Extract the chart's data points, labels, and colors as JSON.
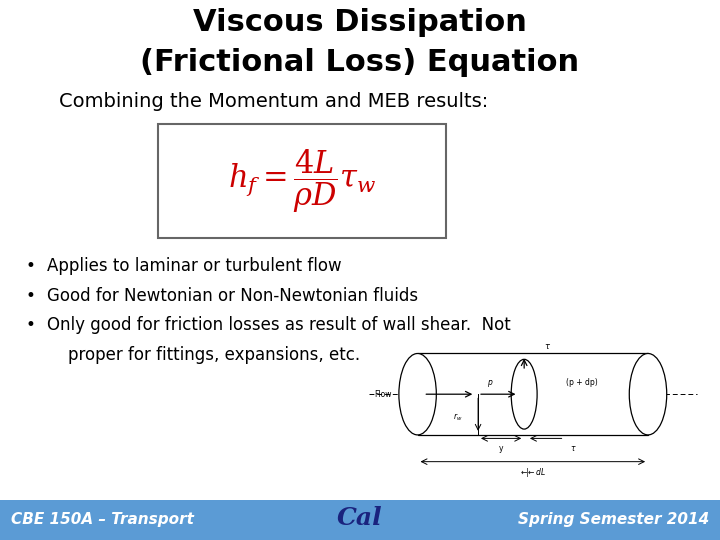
{
  "title_line1": "Viscous Dissipation",
  "title_line2": "(Frictional Loss) Equation",
  "subtitle": "Combining the Momentum and MEB results:",
  "footer_left": "CBE 150A – Transport",
  "footer_right": "Spring Semester 2014",
  "footer_bg_left": "#5b9bd5",
  "footer_bg_right": "#4472c4",
  "title_color": "#000000",
  "subtitle_color": "#000000",
  "equation_color": "#cc0000",
  "bullet_color": "#000000",
  "footer_text_color": "#ffffff",
  "bg_color": "#ffffff",
  "box_border_color": "#666666",
  "title_fontsize": 22,
  "subtitle_fontsize": 14,
  "equation_fontsize": 22,
  "bullet_fontsize": 12,
  "footer_fontsize": 11,
  "bullet1": "Applies to laminar or turbulent flow",
  "bullet2": "Good for Newtonian or Non-Newtonian fluids",
  "bullet3a": "Only good for friction losses as result of wall shear.  Not",
  "bullet3b": "    proper for fittings, expansions, etc."
}
